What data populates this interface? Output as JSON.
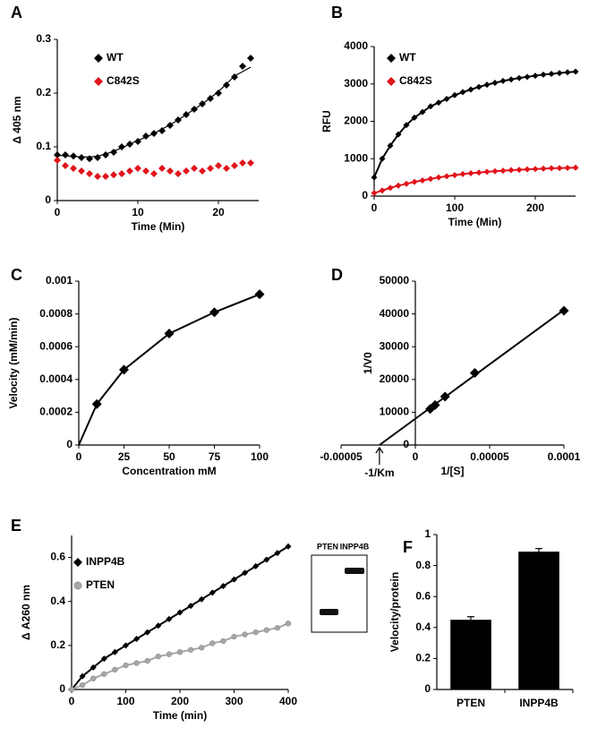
{
  "chart_data": [
    {
      "type": "scatter",
      "panel": "A",
      "xlabel": "Time (Min)",
      "ylabel": "Δ 405 nm",
      "x": [
        0,
        1,
        2,
        3,
        4,
        5,
        6,
        7,
        8,
        9,
        10,
        11,
        12,
        13,
        14,
        15,
        16,
        17,
        18,
        19,
        20,
        21,
        22,
        23,
        24
      ],
      "xlim": [
        0,
        25
      ],
      "xticks": [
        0,
        10,
        20
      ],
      "ylim": [
        0,
        0.3
      ],
      "yticks": [
        0,
        0.1,
        0.2,
        0.3
      ],
      "legend": "upper left",
      "series": [
        {
          "name": "WT",
          "color": "#000000",
          "marker": "diamond",
          "trendline": true,
          "values": [
            0.085,
            0.085,
            0.083,
            0.08,
            0.078,
            0.08,
            0.085,
            0.09,
            0.1,
            0.105,
            0.11,
            0.12,
            0.125,
            0.13,
            0.14,
            0.15,
            0.16,
            0.17,
            0.18,
            0.19,
            0.2,
            0.215,
            0.23,
            0.25,
            0.265
          ]
        },
        {
          "name": "C842S",
          "color": "#e0141b",
          "marker": "diamond",
          "values": [
            0.075,
            0.065,
            0.06,
            0.055,
            0.05,
            0.045,
            0.045,
            0.048,
            0.05,
            0.055,
            0.06,
            0.055,
            0.05,
            0.06,
            0.055,
            0.05,
            0.055,
            0.06,
            0.055,
            0.06,
            0.065,
            0.06,
            0.065,
            0.07,
            0.07
          ]
        }
      ]
    },
    {
      "type": "line",
      "panel": "B",
      "xlabel": "Time (Min)",
      "ylabel": "RFU",
      "x": [
        0,
        10,
        20,
        30,
        40,
        50,
        60,
        70,
        80,
        90,
        100,
        110,
        120,
        130,
        140,
        150,
        160,
        170,
        180,
        190,
        200,
        210,
        220,
        230,
        240,
        250
      ],
      "xlim": [
        0,
        250
      ],
      "xticks": [
        0,
        100,
        200
      ],
      "ylim": [
        0,
        4000
      ],
      "yticks": [
        0,
        1000,
        2000,
        3000,
        4000
      ],
      "legend": "upper left",
      "series": [
        {
          "name": "WT",
          "color": "#000000",
          "marker": "diamond",
          "values": [
            500,
            1000,
            1350,
            1650,
            1900,
            2100,
            2250,
            2400,
            2500,
            2600,
            2700,
            2780,
            2850,
            2920,
            2980,
            3030,
            3080,
            3120,
            3160,
            3190,
            3220,
            3250,
            3270,
            3290,
            3310,
            3330
          ]
        },
        {
          "name": "C842S",
          "color": "#e0141b",
          "marker": "diamond",
          "values": [
            80,
            150,
            220,
            280,
            330,
            380,
            420,
            460,
            500,
            530,
            560,
            590,
            610,
            630,
            650,
            665,
            680,
            695,
            705,
            715,
            725,
            735,
            745,
            750,
            755,
            760
          ]
        }
      ]
    },
    {
      "type": "line",
      "panel": "C",
      "xlabel": "Concentration mM",
      "ylabel": "Velocity (mM/min)",
      "x": [
        10,
        25,
        50,
        75,
        100
      ],
      "xlim": [
        0,
        100
      ],
      "xticks": [
        0,
        25,
        50,
        75,
        100
      ],
      "ylim": [
        0,
        0.001
      ],
      "yticks": [
        0,
        0.0002,
        0.0004,
        0.0006,
        0.0008,
        0.001
      ],
      "series": [
        {
          "color": "#000000",
          "marker": "diamond",
          "values": [
            0.00025,
            0.00046,
            0.00068,
            0.00081,
            0.00092
          ]
        }
      ]
    },
    {
      "type": "scatter",
      "panel": "D",
      "xlabel": "1/[S]",
      "ylabel": "1/V0",
      "annotation": "-1/Km",
      "x": [
        0.0001,
        4e-05,
        2e-05,
        1.33e-05,
        1e-05
      ],
      "xlim": [
        -5e-05,
        0.0001
      ],
      "xticks": [
        -5e-05,
        0,
        5e-05,
        0.0001
      ],
      "ylim": [
        0,
        50000
      ],
      "yticks": [
        0,
        10000,
        20000,
        30000,
        40000,
        50000
      ],
      "series": [
        {
          "color": "#000000",
          "marker": "diamond",
          "fit": "linear",
          "values": [
            41000,
            22000,
            14800,
            12200,
            11000
          ]
        }
      ]
    },
    {
      "type": "line",
      "panel": "E",
      "xlabel": "Time (min)",
      "ylabel": "Δ A260 nm",
      "inset_labels": [
        "PTEN",
        "INPP4B"
      ],
      "x": [
        0,
        20,
        40,
        60,
        80,
        100,
        120,
        140,
        160,
        180,
        200,
        220,
        240,
        260,
        280,
        300,
        320,
        340,
        360,
        380,
        400
      ],
      "xlim": [
        0,
        400
      ],
      "xticks": [
        0,
        100,
        200,
        300,
        400
      ],
      "ylim": [
        0,
        0.7
      ],
      "yticks": [
        0,
        0.2,
        0.4,
        0.6
      ],
      "legend": "upper left",
      "series": [
        {
          "name": "INPP4B",
          "color": "#000000",
          "marker": "diamond",
          "values": [
            0,
            0.06,
            0.1,
            0.14,
            0.17,
            0.2,
            0.23,
            0.26,
            0.29,
            0.32,
            0.35,
            0.38,
            0.41,
            0.44,
            0.47,
            0.5,
            0.53,
            0.56,
            0.59,
            0.62,
            0.65
          ]
        },
        {
          "name": "PTEN",
          "color": "#a6a6a6",
          "marker": "circle",
          "values": [
            0,
            0.02,
            0.05,
            0.07,
            0.09,
            0.11,
            0.12,
            0.13,
            0.15,
            0.16,
            0.17,
            0.18,
            0.19,
            0.21,
            0.22,
            0.24,
            0.25,
            0.26,
            0.27,
            0.28,
            0.3
          ]
        }
      ]
    },
    {
      "type": "bar",
      "panel": "F",
      "ylabel": "Velocity/protein",
      "categories": [
        "PTEN",
        "INPP4B"
      ],
      "values": [
        0.45,
        0.89
      ],
      "errors": [
        0.02,
        0.02
      ],
      "color": "#000000",
      "ylim": [
        0,
        1
      ],
      "yticks": [
        0,
        0.2,
        0.4,
        0.6,
        0.8,
        1
      ]
    }
  ]
}
